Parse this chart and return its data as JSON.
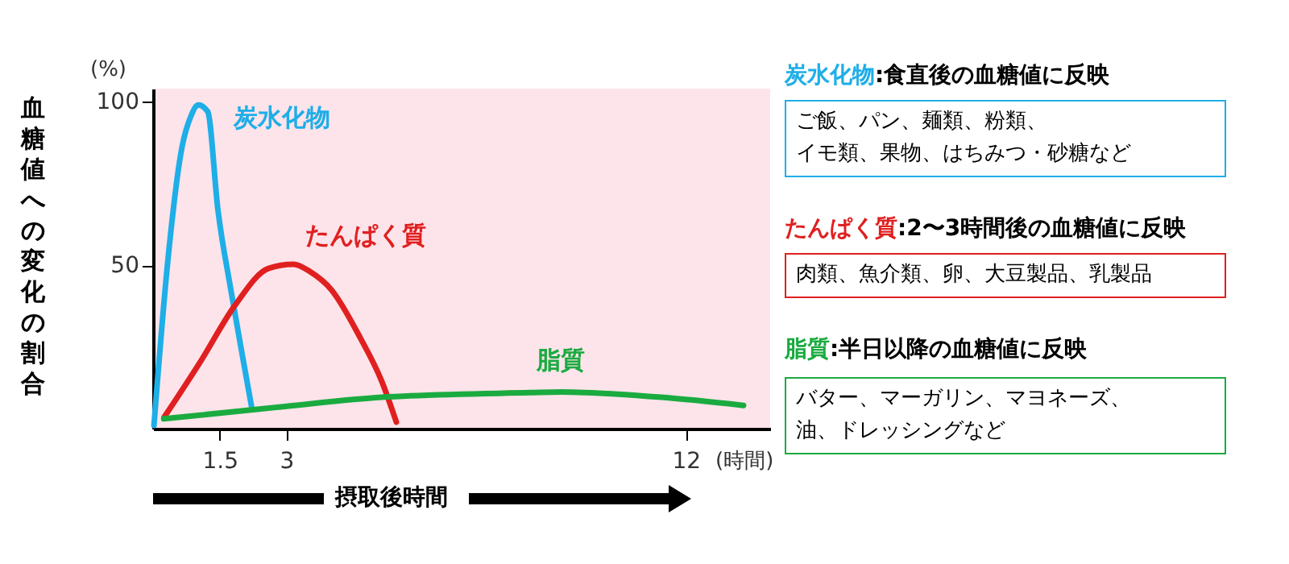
{
  "chart_data": {
    "type": "line",
    "ylabel": "血糖値への変化の割合",
    "xlabel": "摂取後時間",
    "xlim": [
      0,
      13.9
    ],
    "xticks": [
      1.5,
      3,
      12
    ],
    "ylim": [
      0,
      104
    ],
    "yticks": [
      50,
      100
    ],
    "annotations": [
      "(%)",
      "(時間)",
      ":食直後の血糖値に反映",
      "ご飯、パン、麺類、粉類、",
      "イモ類、果物、はちみつ・砂糖など",
      ":2〜3時間後の血糖値に反映",
      "肉類、魚介類、卵、大豆製品、乳製品",
      ":半日以降の血糖値に反映",
      "バター、マーガリン、マヨネーズ、",
      "油、ドレッシングなど"
    ],
    "series": [
      {
        "name": "炭水化物",
        "color": "#1eaee8",
        "x": [
          0.02,
          0.33,
          0.65,
          0.85,
          1.02,
          1.23,
          1.46,
          1.75,
          2.03,
          2.22
        ],
        "values": [
          1,
          51,
          86,
          95.5,
          99,
          97,
          67,
          42.6,
          21,
          6.6
        ]
      },
      {
        "name": "たんぱく質",
        "color": "#e02020",
        "x": [
          0.25,
          1.09,
          1.84,
          2.6,
          3.16,
          3.54,
          4.01,
          4.67,
          5.15,
          5.48
        ],
        "values": [
          3.5,
          21,
          37.6,
          49,
          50.3,
          48,
          42.6,
          27.7,
          14.5,
          2
        ]
      },
      {
        "name": "脂質",
        "color": "#1aab40",
        "x": [
          0.24,
          2.97,
          5.15,
          8.48,
          9.19,
          11.45,
          13.3
        ],
        "values": [
          3,
          6.8,
          9.6,
          11,
          11.2,
          9.6,
          7.1
        ]
      }
    ]
  }
}
